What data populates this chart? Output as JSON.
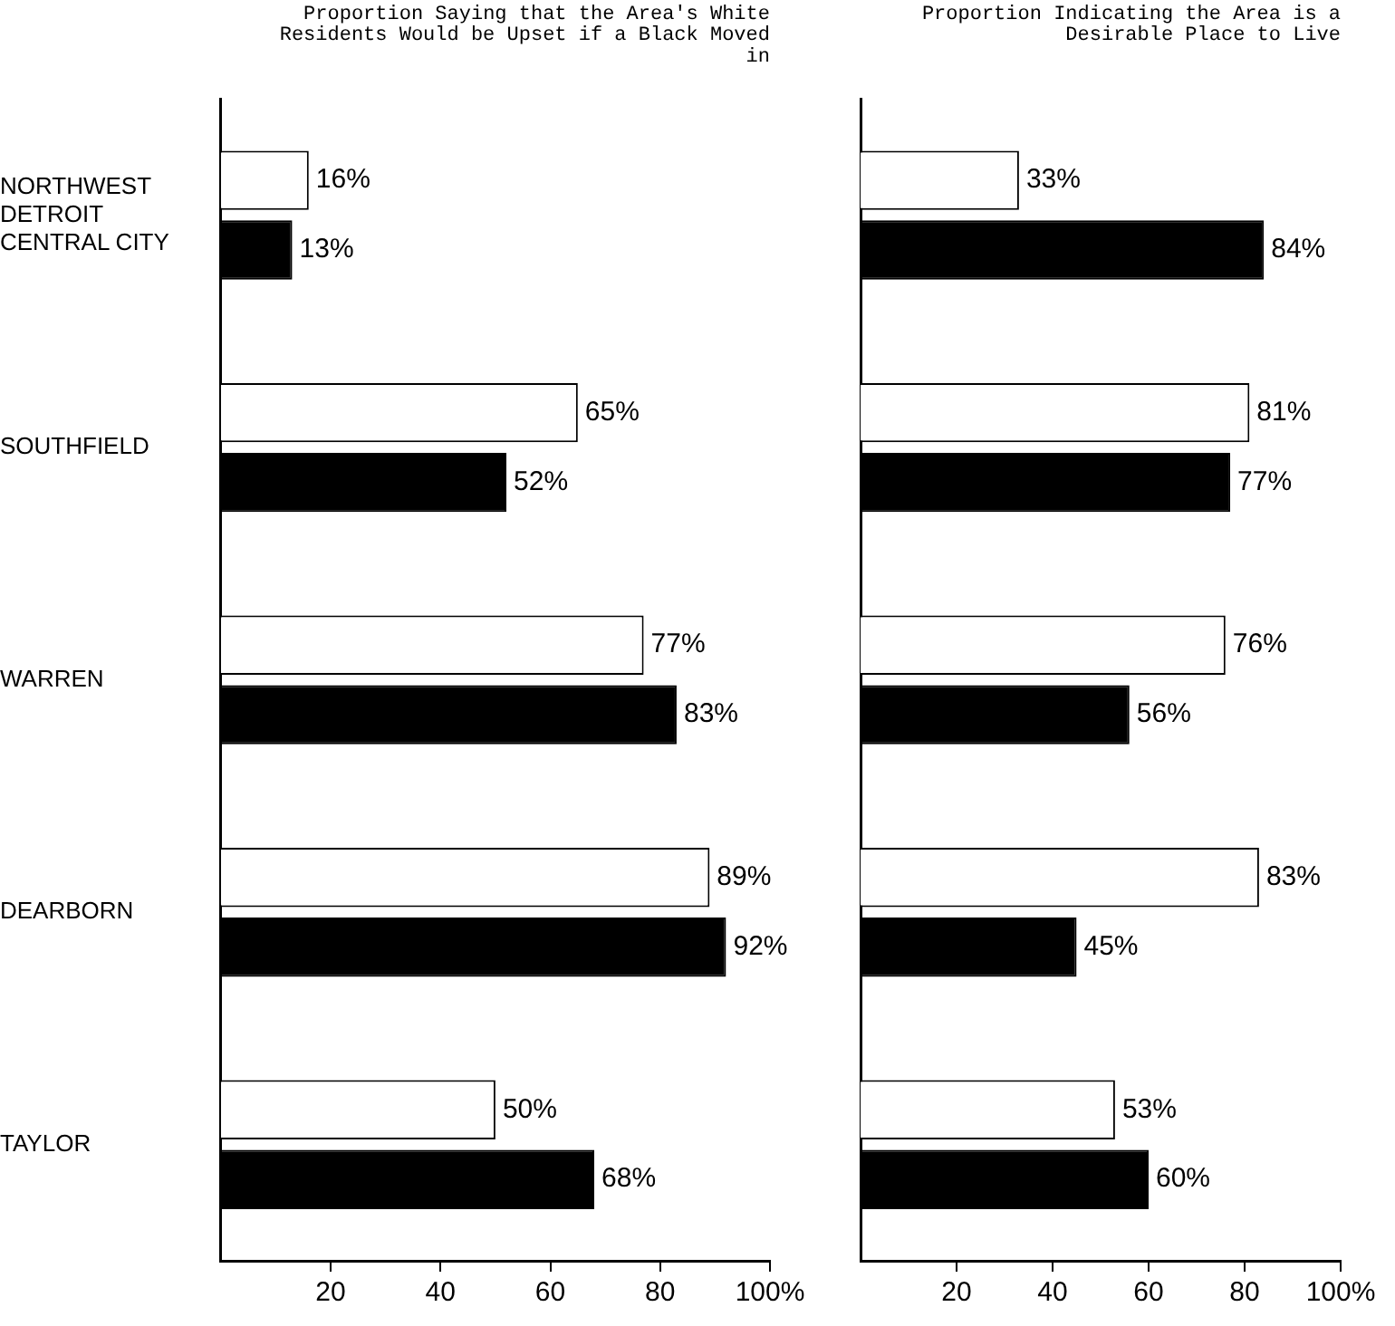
{
  "chart_data": [
    {
      "type": "bar",
      "orientation": "horizontal",
      "title": "Proportion Saying that the Area's White Residents Would be Upset if a Black Moved in",
      "categories": [
        "NORTHWEST DETROIT CENTRAL CITY",
        "SOUTHFIELD",
        "WARREN",
        "DEARBORN",
        "TAYLOR"
      ],
      "series": [
        {
          "color": "#ffffff",
          "values": [
            16,
            65,
            77,
            89,
            50
          ],
          "value_labels": [
            "16%",
            "65%",
            "77%",
            "89%",
            "50%"
          ]
        },
        {
          "color": "#000000",
          "values": [
            13,
            52,
            83,
            92,
            68
          ],
          "value_labels": [
            "13%",
            "52%",
            "83%",
            "92%",
            "68%"
          ]
        }
      ],
      "xlim": [
        0,
        100
      ],
      "xticks": [
        20,
        40,
        60,
        80,
        {
          "value": 100,
          "label": "100%"
        }
      ],
      "grid": false,
      "legend": false
    },
    {
      "type": "bar",
      "orientation": "horizontal",
      "title": "Proportion Indicating the Area is a Desirable Place to Live",
      "categories": [
        null,
        null,
        null,
        null,
        null
      ],
      "series": [
        {
          "color": "#ffffff",
          "values": [
            33,
            81,
            76,
            83,
            53
          ],
          "value_labels": [
            "33%",
            "81%",
            "76%",
            "83%",
            "53%"
          ]
        },
        {
          "color": "#000000",
          "values": [
            84,
            77,
            56,
            45,
            60
          ],
          "value_labels": [
            "84%",
            "77%",
            "56%",
            "45%",
            "60%"
          ]
        }
      ],
      "xlim": [
        0,
        100
      ],
      "xticks": [
        20,
        40,
        60,
        80,
        {
          "value": 100,
          "label": "100%"
        }
      ],
      "tick_labels": "x",
      "grid": false,
      "legend": false
    }
  ]
}
